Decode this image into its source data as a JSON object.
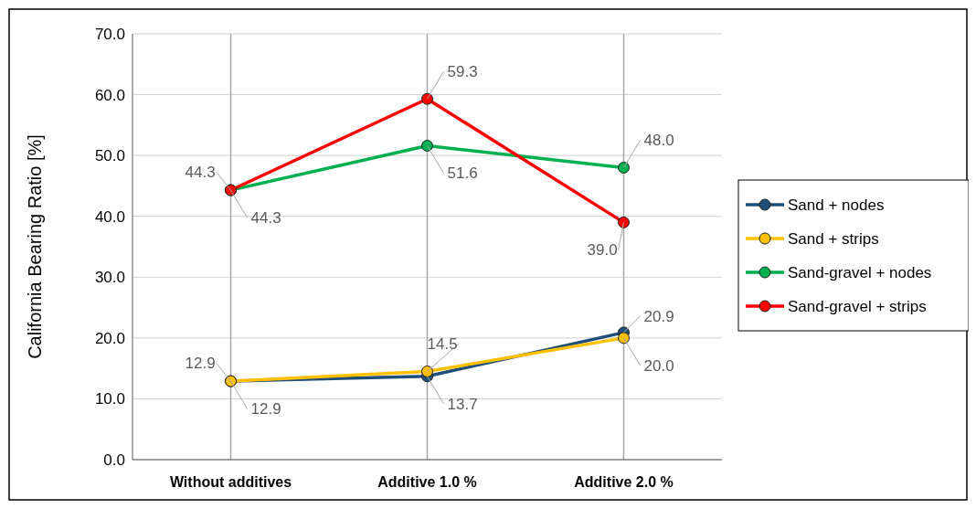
{
  "chart_data": {
    "type": "line",
    "ylabel": "California Bearing Ratio  [%]",
    "categories": [
      "Without additives",
      "Additive 1.0 %",
      "Additive 2.0 %"
    ],
    "series": [
      {
        "name": "Sand + nodes",
        "color": "#1f4e79",
        "values": [
          12.9,
          13.7,
          20.9
        ],
        "value_labels": [
          "12.9",
          "13.7",
          "20.9"
        ]
      },
      {
        "name": "Sand + strips",
        "color": "#ffc000",
        "values": [
          12.9,
          14.5,
          20.0
        ],
        "value_labels": [
          "12.9",
          "14.5",
          "20.0"
        ]
      },
      {
        "name": "Sand-gravel + nodes",
        "color": "#00b050",
        "values": [
          44.3,
          51.6,
          48.0
        ],
        "value_labels": [
          "44.3",
          "51.6",
          "48.0"
        ]
      },
      {
        "name": "Sand-gravel + strips",
        "color": "#ff0000",
        "values": [
          44.3,
          59.3,
          39.0
        ],
        "value_labels": [
          "44.3",
          "59.3",
          "39.0"
        ]
      }
    ],
    "ylim": [
      0,
      70
    ],
    "yticks": [
      {
        "value": 0,
        "label": "0.0"
      },
      {
        "value": 10,
        "label": "10.0"
      },
      {
        "value": 20,
        "label": "20.0"
      },
      {
        "value": 30,
        "label": "30.0"
      },
      {
        "value": 40,
        "label": "40.0"
      },
      {
        "value": 50,
        "label": "50.0"
      },
      {
        "value": 60,
        "label": "60.0"
      },
      {
        "value": 70,
        "label": "70.0"
      }
    ],
    "grid": true,
    "legend": "right",
    "marker": "circle",
    "line_style": "solid"
  }
}
